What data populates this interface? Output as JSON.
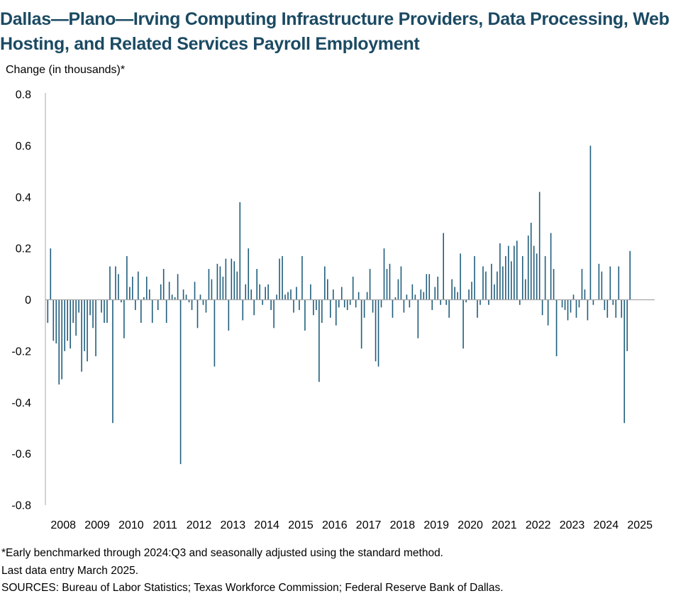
{
  "chart_data": {
    "type": "bar",
    "title": "Dallas—Plano—Irving Computing Infrastructure Providers, Data Processing, Web Hosting, and Related Services Payroll Employment",
    "ylabel": "Change (in thousands)*",
    "xlabel": "",
    "ylim": [
      -0.8,
      0.8
    ],
    "yticks": [
      0.8,
      0.6,
      0.4,
      0.2,
      0,
      -0.2,
      -0.4,
      -0.6,
      -0.8
    ],
    "ytick_labels": [
      "0.8",
      "0.6",
      "0.4",
      "0.2",
      "0",
      "-0.2",
      "-0.4",
      "-0.6",
      "-0.8"
    ],
    "year_labels": [
      "2008",
      "2009",
      "2010",
      "2011",
      "2012",
      "2013",
      "2014",
      "2015",
      "2016",
      "2017",
      "2018",
      "2019",
      "2020",
      "2021",
      "2022",
      "2023",
      "2024",
      "2025"
    ],
    "start": "2008-01",
    "frequency": "monthly",
    "bar_color": "#1f5d7c",
    "series": [
      {
        "name": "Monthly change in payroll employment (thousands)",
        "values": [
          -0.09,
          0.2,
          -0.16,
          -0.17,
          -0.33,
          -0.31,
          -0.2,
          -0.16,
          -0.19,
          -0.09,
          -0.14,
          -0.05,
          -0.28,
          -0.2,
          -0.24,
          -0.06,
          -0.11,
          -0.22,
          0,
          -0.05,
          -0.09,
          -0.09,
          0.13,
          -0.48,
          0.13,
          0.1,
          -0.01,
          -0.15,
          0.17,
          0.05,
          0.09,
          -0.04,
          0.11,
          -0.09,
          0.01,
          0.09,
          0.04,
          -0.09,
          0,
          -0.04,
          0.06,
          0.12,
          -0.09,
          0.07,
          0.02,
          0.01,
          0.1,
          -0.64,
          0.04,
          0.02,
          -0.01,
          -0.04,
          0.07,
          -0.11,
          0.02,
          -0.02,
          -0.05,
          0.12,
          0.08,
          -0.26,
          0.14,
          0.13,
          0.09,
          0.16,
          -0.12,
          0.16,
          0.15,
          0.11,
          0.38,
          -0.08,
          0.06,
          0.2,
          0.04,
          -0.06,
          0.12,
          0.06,
          -0.02,
          0.05,
          0.06,
          -0.04,
          -0.11,
          0.02,
          0.16,
          0.17,
          0.02,
          0.03,
          0.04,
          -0.05,
          0.05,
          -0.04,
          0.17,
          -0.12,
          0,
          0.06,
          -0.06,
          -0.04,
          -0.32,
          -0.09,
          0.13,
          0.08,
          -0.07,
          0.04,
          -0.1,
          -0.03,
          0.05,
          -0.03,
          -0.04,
          -0.02,
          0.09,
          -0.03,
          0.03,
          -0.19,
          -0.07,
          0.03,
          0.12,
          -0.05,
          -0.24,
          -0.26,
          -0.03,
          0.2,
          0.12,
          0.14,
          -0.07,
          0.01,
          0.08,
          0.13,
          -0.05,
          0.02,
          -0.03,
          0.06,
          0.02,
          -0.15,
          0.04,
          0.03,
          0.1,
          0.1,
          -0.04,
          0.05,
          0.09,
          -0.02,
          0.26,
          -0.02,
          -0.07,
          0.08,
          0.05,
          0.03,
          0.18,
          -0.19,
          -0.01,
          0.04,
          0.07,
          0.17,
          -0.07,
          -0.02,
          0.13,
          0.11,
          -0.02,
          0.14,
          0.06,
          0.11,
          0.22,
          0.13,
          0.17,
          0.21,
          0.15,
          0.21,
          0.23,
          -0.02,
          0.17,
          0.08,
          0.25,
          0.3,
          0.21,
          0.18,
          0.42,
          -0.06,
          0.17,
          -0.1,
          0.26,
          0.12,
          -0.22,
          0,
          -0.03,
          -0.04,
          -0.08,
          -0.05,
          0.02,
          -0.07,
          -0.03,
          0.12,
          0.04,
          -0.08,
          0.6,
          -0.02,
          0,
          0.14,
          0.11,
          -0.04,
          -0.07,
          0.13,
          -0.02,
          -0.07,
          0.13,
          -0.07,
          -0.48,
          -0.2,
          0.19
        ]
      }
    ]
  },
  "footnotes": {
    "note": "*Early benchmarked through 2024:Q3 and seasonally adjusted using the standard method.",
    "last_entry": "Last data entry March 2025.",
    "sources": "SOURCES: Bureau of Labor Statistics; Texas Workforce Commission; Federal Reserve Bank of Dallas."
  }
}
